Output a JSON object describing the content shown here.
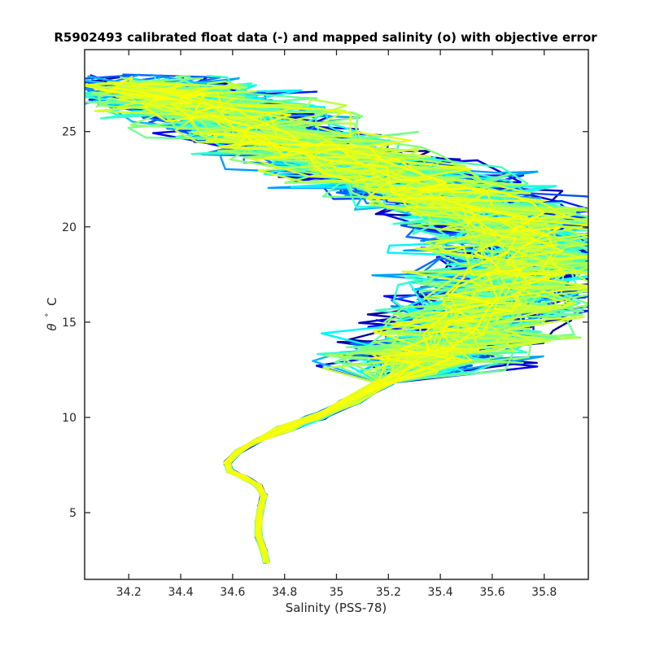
{
  "chart_data": {
    "type": "line",
    "title": "R5902493 calibrated float data (-) and mapped salinity (o) with objective error",
    "xlabel": "Salinity (PSS-78)",
    "ylabel_symbol": "θ",
    "ylabel_unit": "C",
    "xlim": [
      34.03,
      35.97
    ],
    "ylim": [
      1.5,
      29.3
    ],
    "x_ticks": [
      "34.2",
      "34.4",
      "34.6",
      "34.8",
      "35",
      "35.2",
      "35.4",
      "35.6",
      "35.8"
    ],
    "y_ticks": [
      "5",
      "10",
      "15",
      "20",
      "25"
    ],
    "x_tick_values": [
      34.2,
      34.4,
      34.6,
      34.8,
      35.0,
      35.2,
      35.4,
      35.6,
      35.8
    ],
    "y_tick_values": [
      5,
      10,
      15,
      20,
      25
    ],
    "grid": false,
    "colormap": [
      "#00008f",
      "#0000ff",
      "#0080ff",
      "#00ffff",
      "#80ff80",
      "#ffff00"
    ],
    "series_count": 140,
    "deep_profile": [
      [
        34.73,
        2.4
      ],
      [
        34.72,
        3.0
      ],
      [
        34.7,
        3.8
      ],
      [
        34.7,
        4.6
      ],
      [
        34.71,
        5.3
      ],
      [
        34.72,
        5.9
      ],
      [
        34.7,
        6.4
      ],
      [
        34.65,
        6.8
      ],
      [
        34.59,
        7.2
      ],
      [
        34.58,
        7.6
      ],
      [
        34.62,
        8.2
      ],
      [
        34.7,
        8.8
      ],
      [
        34.8,
        9.4
      ],
      [
        34.92,
        10.0
      ],
      [
        35.05,
        10.8
      ],
      [
        35.18,
        11.8
      ],
      [
        35.3,
        12.8
      ],
      [
        35.42,
        13.8
      ],
      [
        35.52,
        14.8
      ],
      [
        35.62,
        16.0
      ],
      [
        35.7,
        17.3
      ],
      [
        35.75,
        18.5
      ],
      [
        35.72,
        19.6
      ],
      [
        35.62,
        20.5
      ],
      [
        35.48,
        21.4
      ],
      [
        35.3,
        22.3
      ],
      [
        35.1,
        23.2
      ],
      [
        34.9,
        24.2
      ],
      [
        34.72,
        25.0
      ],
      [
        34.55,
        26.0
      ],
      [
        34.42,
        26.8
      ],
      [
        34.3,
        27.4
      ]
    ]
  }
}
